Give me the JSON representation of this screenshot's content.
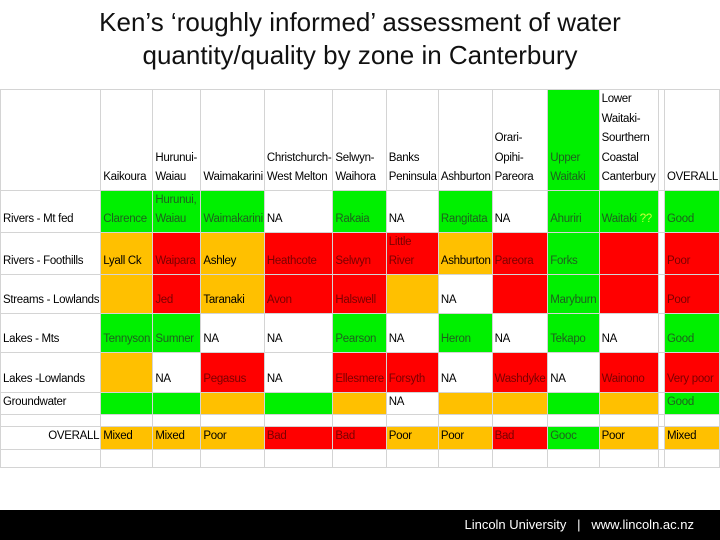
{
  "title": {
    "line1": "Ken’s ‘roughly informed’ assessment of water",
    "line2": "quantity/quality by zone in Canterbury"
  },
  "colors": {
    "G": "#00f000",
    "R": "#ff0000",
    "O": "#ffc000",
    "W": "#ffffff"
  },
  "table": {
    "headers": [
      "",
      "Kaikoura",
      "Hurunui-Waiau",
      "Waimakarini",
      "Christchurch-West Melton",
      "Selwyn-Waihora",
      "Banks Peninsula",
      "Ashburton",
      "Orari-Opihi-Pareora",
      "Upper Waitaki",
      "Lower Waitaki-Sourthern Coastal Canterbury",
      "",
      "OVERALL"
    ],
    "header_fills": [
      "W",
      "W",
      "W",
      "W",
      "W",
      "W",
      "W",
      "W",
      "W",
      "G",
      "W",
      "W",
      "W"
    ],
    "rows": [
      {
        "label": "Rivers - Mt fed",
        "cells": [
          [
            "Clarence",
            "G"
          ],
          [
            "Hurunui, Waiau",
            "G"
          ],
          [
            "Waimakarini",
            "G"
          ],
          [
            "NA",
            "W"
          ],
          [
            "Rakaia",
            "G"
          ],
          [
            "NA",
            "W"
          ],
          [
            "Rangitata",
            "G"
          ],
          [
            "NA",
            "W"
          ],
          [
            "Ahuriri",
            "G"
          ],
          [
            "Waitaki ??",
            "G"
          ],
          [
            "",
            "W"
          ],
          [
            "Good",
            "G"
          ]
        ]
      },
      {
        "label": "Rivers - Foothills",
        "cells": [
          [
            "Lyall Ck",
            "O"
          ],
          [
            "Waipara",
            "R"
          ],
          [
            "Ashley",
            "O"
          ],
          [
            "Heathcote",
            "R"
          ],
          [
            "Selwyn",
            "R"
          ],
          [
            "Little River",
            "R"
          ],
          [
            "Ashburton",
            "O"
          ],
          [
            "Pareora",
            "R"
          ],
          [
            "Forks",
            "G"
          ],
          [
            "",
            "R"
          ],
          [
            "",
            "W"
          ],
          [
            "Poor",
            "R"
          ]
        ]
      },
      {
        "label": "Streams - Lowlands",
        "cells": [
          [
            "",
            "O"
          ],
          [
            "Jed",
            "R"
          ],
          [
            "Taranaki",
            "O"
          ],
          [
            "Avon",
            "R"
          ],
          [
            "Halswell",
            "R"
          ],
          [
            "",
            "O"
          ],
          [
            "NA",
            "W"
          ],
          [
            "",
            "R"
          ],
          [
            "Maryburn",
            "G"
          ],
          [
            "",
            "R"
          ],
          [
            "",
            "W"
          ],
          [
            "Poor",
            "R"
          ]
        ]
      },
      {
        "label": "Lakes - Mts",
        "cells": [
          [
            "Tennyson",
            "G"
          ],
          [
            "Sumner",
            "G"
          ],
          [
            "NA",
            "W"
          ],
          [
            "NA",
            "W"
          ],
          [
            "Pearson",
            "G"
          ],
          [
            "NA",
            "W"
          ],
          [
            "Heron",
            "G"
          ],
          [
            "NA",
            "W"
          ],
          [
            "Tekapo",
            "G"
          ],
          [
            "NA",
            "W"
          ],
          [
            "",
            "W"
          ],
          [
            "Good",
            "G"
          ]
        ]
      },
      {
        "label": "Lakes -Lowlands",
        "cells": [
          [
            "",
            "O"
          ],
          [
            "NA",
            "W"
          ],
          [
            "Pegasus",
            "R"
          ],
          [
            "NA",
            "W"
          ],
          [
            "Ellesmere",
            "R"
          ],
          [
            "Forsyth",
            "R"
          ],
          [
            "NA",
            "W"
          ],
          [
            "Washdyke",
            "R"
          ],
          [
            "NA",
            "W"
          ],
          [
            "Wainono",
            "R"
          ],
          [
            "",
            "W"
          ],
          [
            "Very poor",
            "R"
          ]
        ]
      },
      {
        "label": "Groundwater",
        "cells": [
          [
            "",
            "G"
          ],
          [
            "",
            "G"
          ],
          [
            "",
            "O"
          ],
          [
            "",
            "G"
          ],
          [
            "",
            "O"
          ],
          [
            "NA",
            "W"
          ],
          [
            "",
            "O"
          ],
          [
            "",
            "O"
          ],
          [
            "",
            "G"
          ],
          [
            "",
            "O"
          ],
          [
            "",
            "W"
          ],
          [
            "Good",
            "G"
          ]
        ]
      },
      {
        "label": "",
        "cells": [
          [
            "",
            "W"
          ],
          [
            "",
            "W"
          ],
          [
            "",
            "W"
          ],
          [
            "",
            "W"
          ],
          [
            "",
            "W"
          ],
          [
            "",
            "W"
          ],
          [
            "",
            "W"
          ],
          [
            "",
            "W"
          ],
          [
            "",
            "W"
          ],
          [
            "",
            "W"
          ],
          [
            "",
            "W"
          ],
          [
            "",
            "W"
          ]
        ]
      },
      {
        "label": "OVERALL",
        "cells": [
          [
            "Mixed",
            "O"
          ],
          [
            "Mixed",
            "O"
          ],
          [
            "Poor",
            "O"
          ],
          [
            "Bad",
            "R"
          ],
          [
            "Bad",
            "R"
          ],
          [
            "Poor",
            "O"
          ],
          [
            "Poor",
            "O"
          ],
          [
            "Bad",
            "R"
          ],
          [
            "Gooc",
            "G"
          ],
          [
            "Poor",
            "O"
          ],
          [
            "",
            "W"
          ],
          [
            "Mixed",
            "O"
          ]
        ]
      },
      {
        "label": "",
        "cells": [
          [
            "",
            "W"
          ],
          [
            "",
            "W"
          ],
          [
            "",
            "W"
          ],
          [
            "",
            "W"
          ],
          [
            "",
            "W"
          ],
          [
            "",
            "W"
          ],
          [
            "",
            "W"
          ],
          [
            "",
            "W"
          ],
          [
            "",
            "W"
          ],
          [
            "",
            "W"
          ],
          [
            "",
            "W"
          ],
          [
            "",
            "W"
          ]
        ]
      }
    ]
  },
  "footer": {
    "text": "Lincoln University   |   www.lincoln.ac.nz"
  }
}
